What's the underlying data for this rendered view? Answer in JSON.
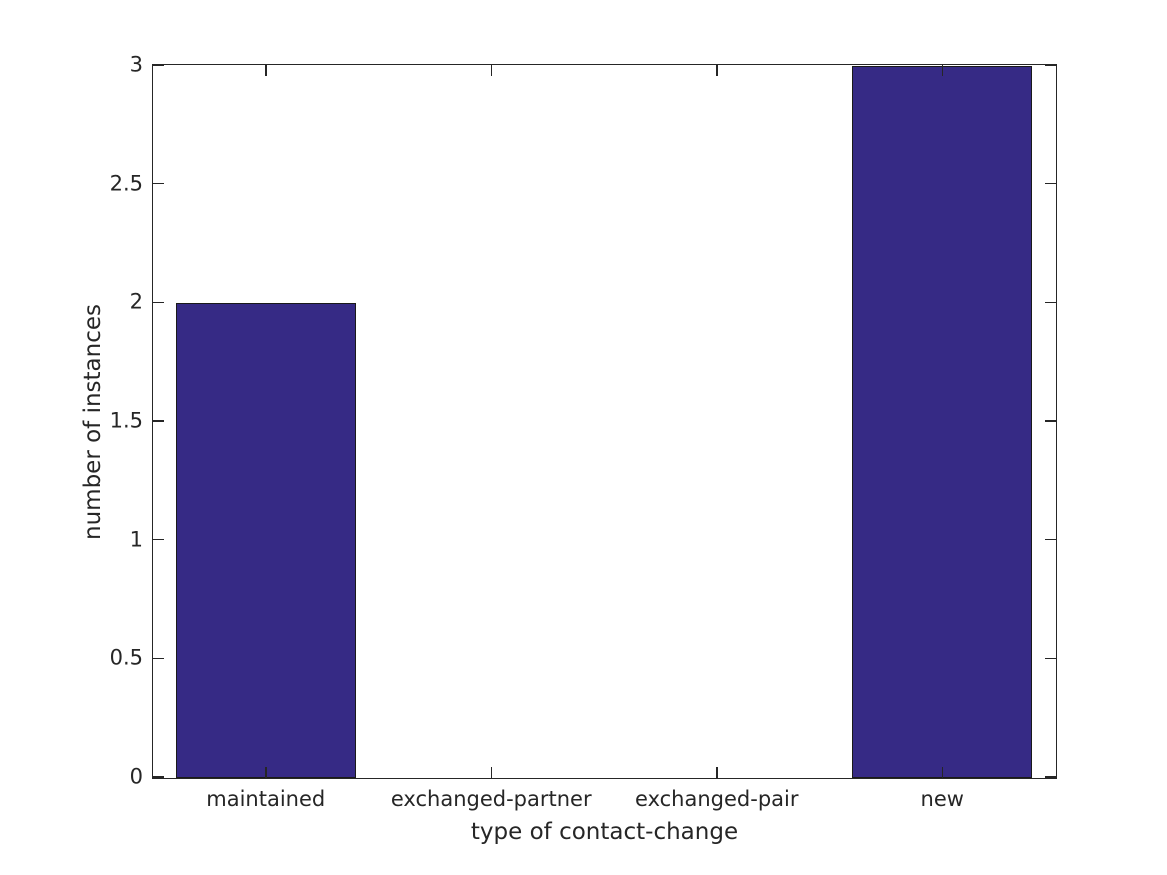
{
  "figure": {
    "background": "#ffffff",
    "axis_color": "#262626",
    "text_color": "#262626"
  },
  "chart_data": {
    "type": "bar",
    "title": "",
    "xlabel": "type of contact-change",
    "ylabel": "number of instances",
    "categories": [
      "maintained",
      "exchanged-partner",
      "exchanged-pair",
      "new"
    ],
    "values": [
      2,
      0,
      0,
      3
    ],
    "ylim": [
      0,
      3
    ],
    "yticks": [
      0,
      0.5,
      1,
      1.5,
      2,
      2.5,
      3
    ],
    "ytick_labels": [
      "0",
      "0.5",
      "1",
      "1.5",
      "2",
      "2.5",
      "3"
    ],
    "bar_width_fraction": 0.8,
    "bar_color": "#362a85",
    "bar_edge_color": "#1a1a1a",
    "grid": false,
    "tick_direction": "in",
    "box": true
  }
}
